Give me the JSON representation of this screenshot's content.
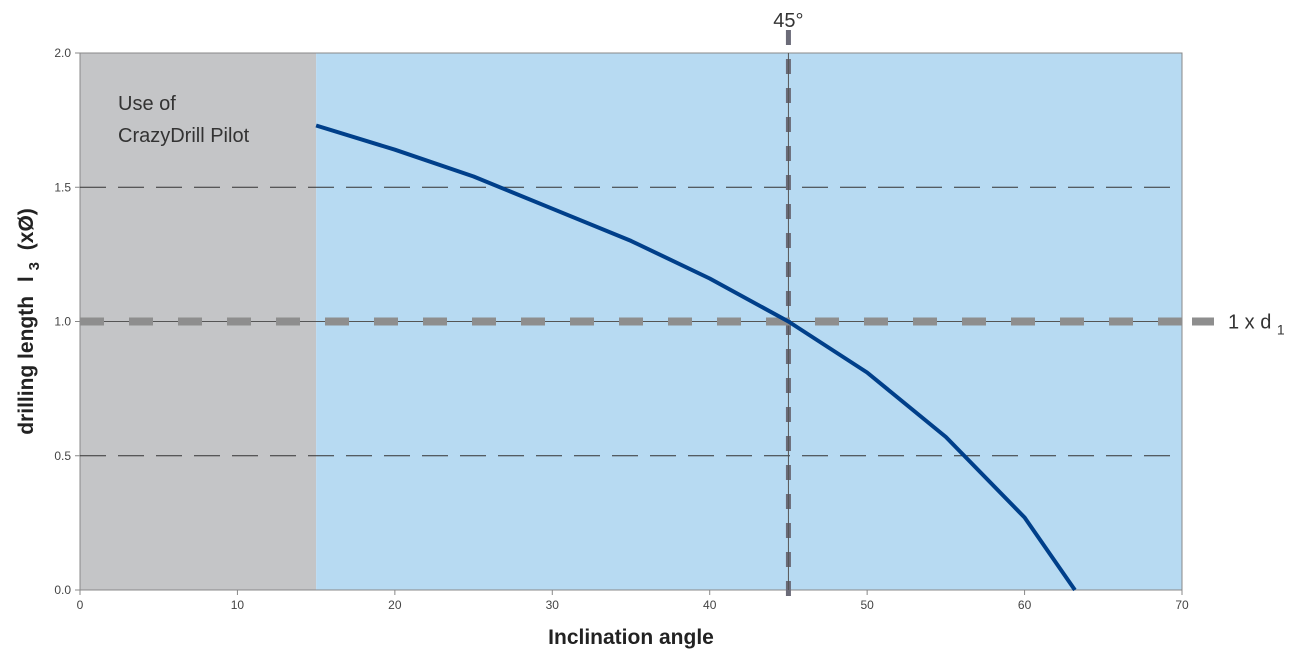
{
  "chart_data": {
    "type": "line",
    "title": "",
    "xlabel": "Inclination angle",
    "ylabel": {
      "main": "drilling length",
      "symbol": "l",
      "subscript": "3",
      "unit": "(xØ)"
    },
    "xlim": [
      0,
      70
    ],
    "ylim": [
      0,
      2.0
    ],
    "x_ticks": [
      0,
      10,
      20,
      30,
      40,
      50,
      60,
      70
    ],
    "y_ticks": [
      0.0,
      0.5,
      1.0,
      1.5,
      2.0
    ],
    "x_tick_labels": [
      "0",
      "10",
      "20",
      "30",
      "40",
      "50",
      "60",
      "70"
    ],
    "y_tick_labels": [
      "0.0",
      "0.5",
      "1.0",
      "1.5",
      "2.0"
    ],
    "grid": {
      "horizontal": true,
      "vertical": false,
      "style": "dashed"
    },
    "series": [
      {
        "x": [
          15,
          20,
          25,
          30,
          35,
          40,
          45,
          50,
          55,
          60,
          63.2
        ],
        "y": [
          1.73,
          1.64,
          1.54,
          1.42,
          1.3,
          1.16,
          1.0,
          0.81,
          0.57,
          0.27,
          0.0
        ],
        "color": "#003f8a"
      }
    ],
    "regions": [
      {
        "x_from": 0,
        "x_to": 15,
        "color": "#c4c5c7",
        "label": [
          "Use of",
          "CrazyDrill Pilot"
        ]
      },
      {
        "x_from": 15,
        "x_to": 70,
        "color": "#b7daf2"
      }
    ],
    "reference_lines": [
      {
        "orientation": "vertical",
        "value": 45,
        "label": "45°",
        "color": "#6b6b78"
      },
      {
        "orientation": "horizontal",
        "value": 1.0,
        "label_main": "1 x d",
        "label_sub": "1",
        "color": "#8e8e8e"
      }
    ]
  }
}
